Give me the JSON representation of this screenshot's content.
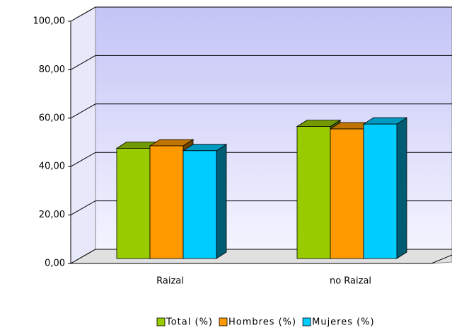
{
  "chart_data": {
    "type": "bar3d",
    "categories": [
      "Raizal",
      "no Raizal"
    ],
    "series": [
      {
        "name": "Total (%)",
        "color": "#99cc00",
        "values": [
          45.5,
          54.5
        ]
      },
      {
        "name": "Hombres (%)",
        "color": "#ff9900",
        "values": [
          46.5,
          53.5
        ]
      },
      {
        "name": "Mujeres (%)",
        "color": "#00ccff",
        "values": [
          44.5,
          55.5
        ]
      }
    ],
    "ylim": [
      0,
      100
    ],
    "yticks": [
      {
        "value": 0,
        "label": "0,00"
      },
      {
        "value": 20,
        "label": "20,00"
      },
      {
        "value": 40,
        "label": "40,00"
      },
      {
        "value": 60,
        "label": "60,00"
      },
      {
        "value": 80,
        "label": "80,00"
      },
      {
        "value": 100,
        "label": "100,00"
      }
    ],
    "grid": true,
    "legend": "bottom"
  }
}
